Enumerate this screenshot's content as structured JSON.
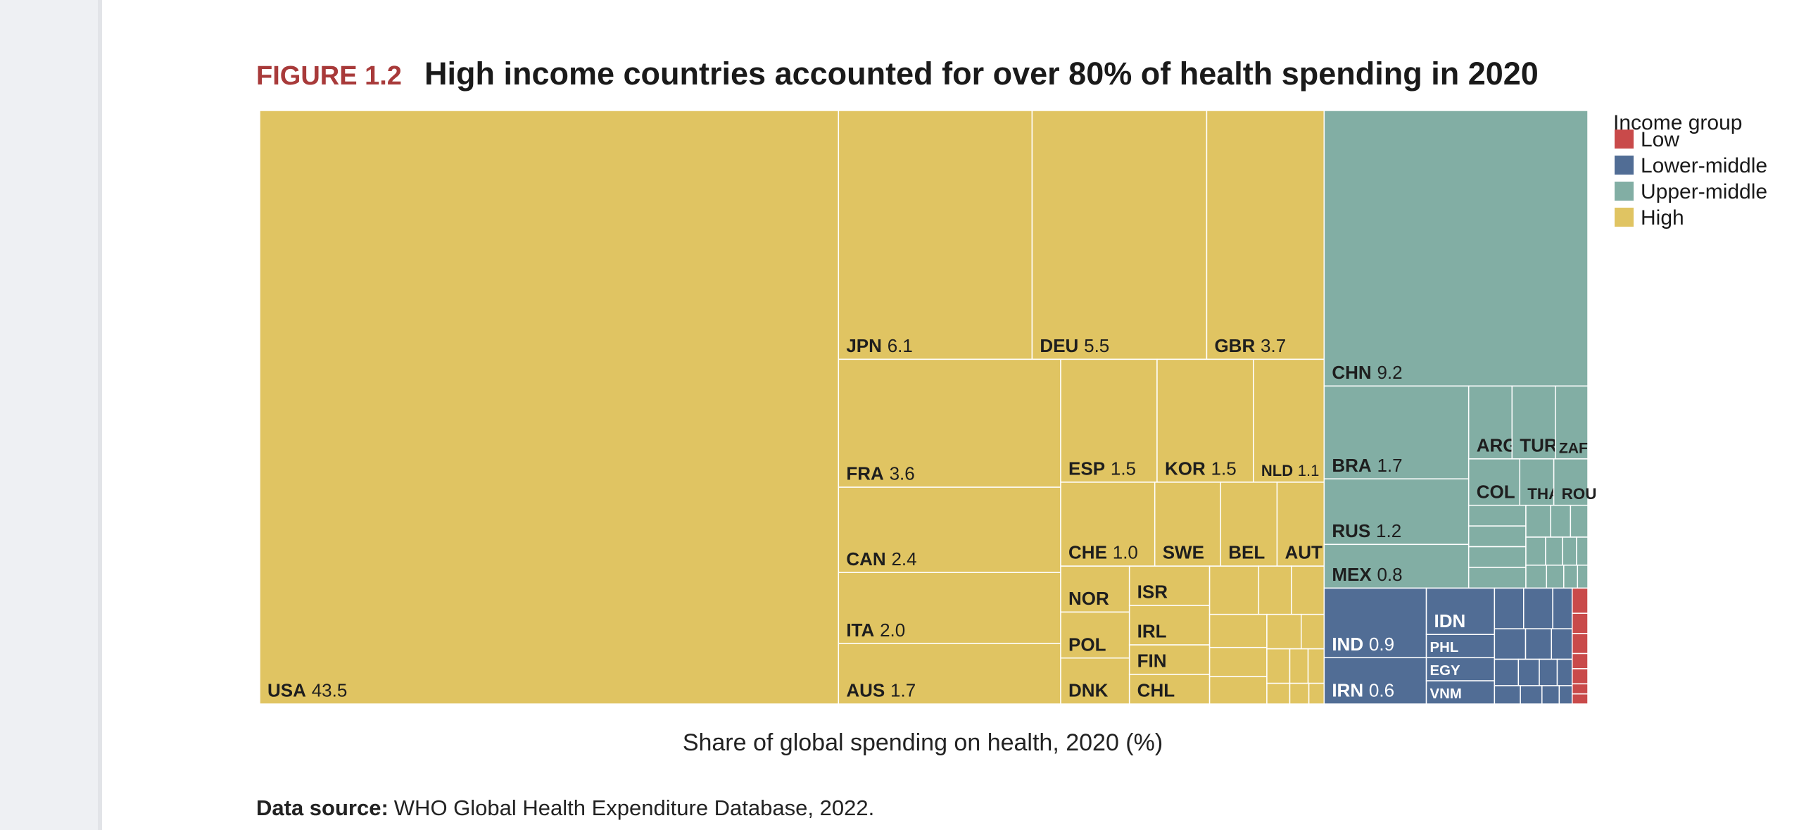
{
  "chart_data": {
    "type": "treemap",
    "figure_label": "FIGURE 1.2",
    "title": "High income countries accounted for over 80% of health spending in 2020",
    "xlabel": "Share of global spending on health, 2020 (%)",
    "legend_title": "Income group",
    "source_label": "Data source:",
    "source": "WHO Global Health Expenditure Database, 2022.",
    "series": [
      {
        "name": "Low",
        "color": "#c94a4a",
        "categories": [
          null,
          null,
          null,
          null,
          null,
          null,
          null
        ],
        "values": [
          0.05,
          0.04,
          0.04,
          0.03,
          0.03,
          0.02,
          0.02
        ],
        "value_labels": [
          null,
          null,
          null,
          null,
          null,
          null,
          null
        ]
      },
      {
        "name": "Lower-middle",
        "color": "#516d95",
        "categories": [
          "IND",
          "IRN",
          "IDN",
          "PHL",
          "EGY",
          "VNM",
          null,
          null,
          null,
          null,
          null,
          null,
          null,
          null,
          null,
          null,
          null,
          null,
          null,
          null
        ],
        "values": [
          0.9,
          0.6,
          0.4,
          0.2,
          0.2,
          0.2,
          0.15,
          0.15,
          0.1,
          0.12,
          0.1,
          0.08,
          0.08,
          0.07,
          0.06,
          0.05,
          0.06,
          0.05,
          0.04,
          0.03
        ],
        "value_labels": [
          "0.9",
          "0.6",
          null,
          null,
          null,
          null,
          null,
          null,
          null,
          null,
          null,
          null,
          null,
          null,
          null,
          null,
          null,
          null,
          null,
          null
        ]
      },
      {
        "name": "Upper-middle",
        "color": "#82aea4",
        "categories": [
          "CHN",
          "BRA",
          "RUS",
          "MEX",
          "ARG",
          "TUR",
          "ZAF",
          "COL",
          "THA",
          "ROU",
          null,
          null,
          null,
          null,
          null,
          null,
          null,
          null,
          null,
          null,
          null,
          null,
          null,
          null,
          null
        ],
        "values": [
          9.2,
          1.7,
          1.2,
          0.8,
          0.4,
          0.4,
          0.3,
          0.3,
          0.2,
          0.2,
          0.15,
          0.15,
          0.15,
          0.15,
          0.1,
          0.08,
          0.07,
          0.07,
          0.06,
          0.05,
          0.04,
          0.06,
          0.05,
          0.04,
          0.03
        ],
        "value_labels": [
          "9.2",
          "1.7",
          "1.2",
          "0.8",
          null,
          null,
          null,
          null,
          null,
          null,
          null,
          null,
          null,
          null,
          null,
          null,
          null,
          null,
          null,
          null,
          null,
          null,
          null,
          null,
          null
        ]
      },
      {
        "name": "High",
        "color": "#e0c462",
        "categories": [
          "USA",
          "JPN",
          "DEU",
          "GBR",
          "FRA",
          "CAN",
          "ITA",
          "AUS",
          "ESP",
          "KOR",
          "NLD",
          "CHE",
          "SWE",
          "BEL",
          "AUT",
          "NOR",
          "POL",
          "DNK",
          "ISR",
          "IRL",
          "FIN",
          "CHL",
          null,
          null,
          null,
          null,
          null,
          null,
          null,
          null,
          null,
          null,
          null,
          null,
          null,
          null
        ],
        "values": [
          43.5,
          6.1,
          5.5,
          3.7,
          3.6,
          2.4,
          2.0,
          1.7,
          1.5,
          1.5,
          1.1,
          1.0,
          0.7,
          0.6,
          0.5,
          0.4,
          0.4,
          0.4,
          0.4,
          0.4,
          0.3,
          0.3,
          0.3,
          0.2,
          0.2,
          0.24,
          0.21,
          0.2,
          0.15,
          0.1,
          0.1,
          0.08,
          0.07,
          0.06,
          0.05,
          0.04
        ],
        "value_labels": [
          "43.5",
          "6.1",
          "5.5",
          "3.7",
          "3.6",
          "2.4",
          "2.0",
          "1.7",
          "1.5",
          "1.5",
          "1.1",
          "1.0",
          null,
          null,
          null,
          null,
          null,
          null,
          null,
          null,
          null,
          null,
          null,
          null,
          null,
          null,
          null,
          null,
          null,
          null,
          null,
          null,
          null,
          null,
          null,
          null
        ]
      }
    ]
  }
}
